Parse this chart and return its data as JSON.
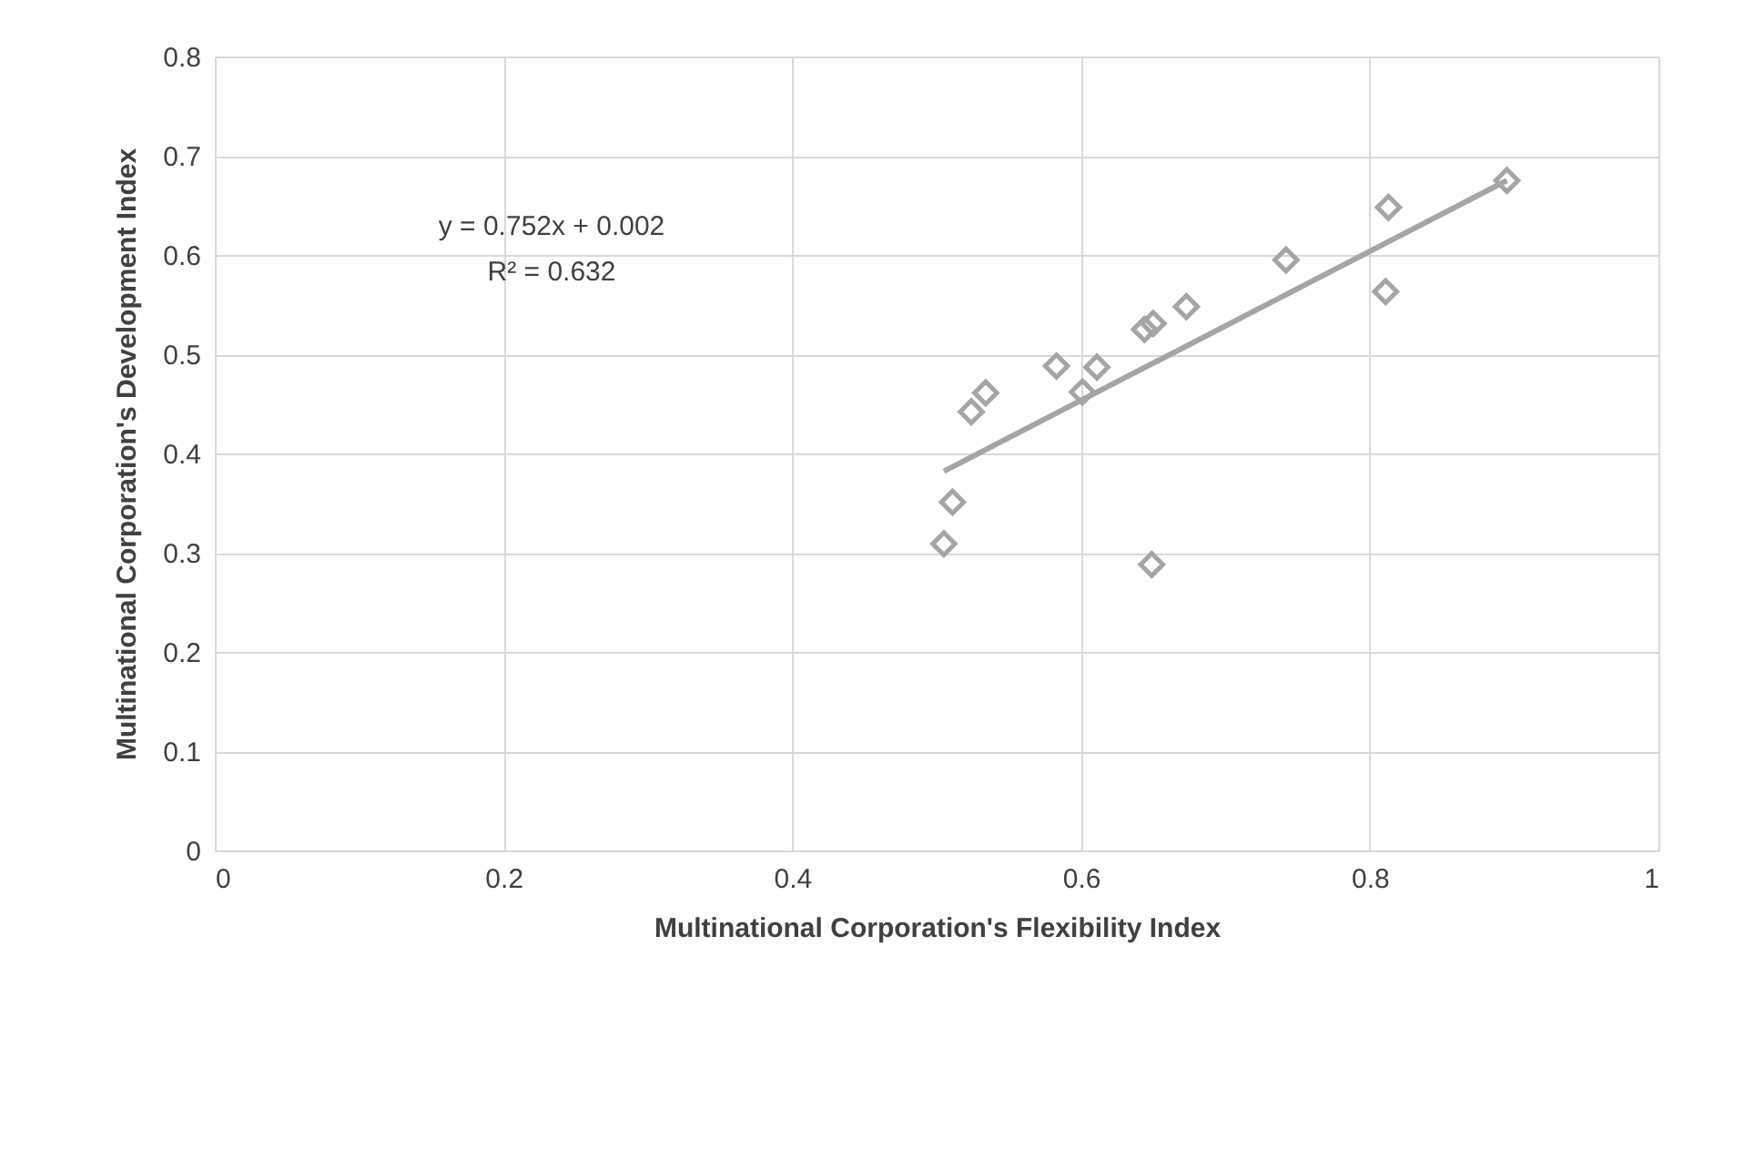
{
  "chart_data": {
    "type": "scatter",
    "xlabel": "Multinational Corporation's Flexibility Index",
    "ylabel": "Multinational Corporation's Development Index",
    "annotations": [
      "y = 0.752x + 0.002",
      "R² = 0.632"
    ],
    "grid": true,
    "xlim": [
      0,
      1
    ],
    "xticks": [
      0,
      0.2,
      0.4,
      0.6,
      0.8,
      1
    ],
    "ylim": [
      0,
      0.8
    ],
    "yticks": [
      0,
      0.1,
      0.2,
      0.3,
      0.4,
      0.5,
      0.6,
      0.7,
      0.8
    ],
    "series": [
      {
        "marker": "diamond",
        "color": "#a5a5a5",
        "x": [
          0.895,
          0.813,
          0.742,
          0.811,
          0.673,
          0.65,
          0.644,
          0.583,
          0.611,
          0.601,
          0.534,
          0.524,
          0.511,
          0.505,
          0.649
        ],
        "values": [
          0.675,
          0.648,
          0.595,
          0.563,
          0.548,
          0.531,
          0.525,
          0.488,
          0.487,
          0.462,
          0.461,
          0.442,
          0.351,
          0.309,
          0.288
        ]
      },
      {
        "type": "line",
        "color": "#a5a5a5",
        "x": [
          0.505,
          0.895
        ],
        "values": [
          0.382,
          0.675
        ]
      }
    ]
  }
}
